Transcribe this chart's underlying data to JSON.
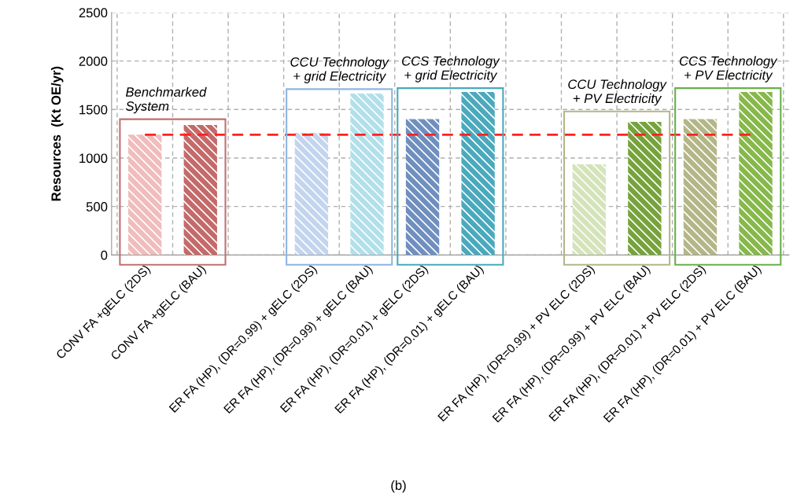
{
  "chart_data": {
    "type": "bar",
    "ylabel": "Resources  (Kt OE/yr)",
    "categories": [
      "CONV FA +gELC (2DS)",
      "CONV FA +gELC (BAU)",
      null,
      "ER FA (HP), (DR=0.99) + gELC (2DS)",
      "ER FA (HP), (DR=0.99) + gELC (BAU)",
      "ER FA (HP), (DR=0.01) + gELC (2DS)",
      "ER FA (HP), (DR=0.01) + gELC (BAU)",
      null,
      "ER FA (HP), (DR=0.99) + PV ELC (2DS)",
      "ER FA (HP), (DR=0.99) + PV ELC (BAU)",
      "ER FA (HP), (DR=0.01) + PV ELC (2DS)",
      "ER FA (HP), (DR=0.01) + PV ELC (BAU)"
    ],
    "values": [
      1240,
      1340,
      null,
      1260,
      1665,
      1400,
      1680,
      null,
      935,
      1372,
      1400,
      1680
    ],
    "colors": [
      "#f0bcbc",
      "#c46a6a",
      null,
      "#c3d5ee",
      "#b2e0ea",
      "#6f8fbf",
      "#4aa9bd",
      null,
      "#d5e3ba",
      "#76a33c",
      "#b3b788",
      "#86b84a"
    ],
    "ylim": [
      0,
      2500
    ],
    "yticks": [
      0,
      500,
      1000,
      1500,
      2000,
      2500
    ],
    "grid": true,
    "ref_lines": [
      {
        "axis": "y",
        "value": 1240,
        "color": "#ff2020",
        "line_style": "dashed"
      }
    ],
    "annotations": [
      "Benchmarked\nSystem",
      "CCU Technology\n+ grid Electricity",
      "CCS Technology\n+ grid Electricity",
      "CCU Technology\n+ PV Electricity",
      "CCS Technology\n+ PV Electricity",
      "(b)"
    ]
  }
}
